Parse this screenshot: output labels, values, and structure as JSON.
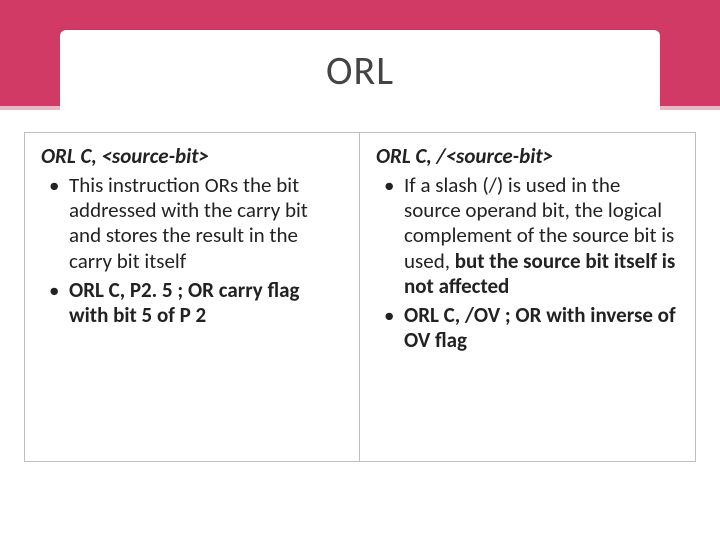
{
  "title": "ORL",
  "left": {
    "heading": "ORL C, <source-bit>",
    "items": [
      {
        "segments": [
          {
            "text": "This instruction ORs the bit addressed with the carry bit and stores the result in the carry bit itself",
            "bold": false
          }
        ]
      },
      {
        "segments": [
          {
            "text": "ORL C, P2. 5 ; OR carry flag with bit 5 of P 2",
            "bold": true
          }
        ]
      }
    ]
  },
  "right": {
    "heading": "ORL C, /<source-bit>",
    "items": [
      {
        "segments": [
          {
            "text": "If a slash (/) is used in the source operand bit, the logical complement of the source bit is used, ",
            "bold": false
          },
          {
            "text": "but the source bit itself is not affected",
            "bold": true
          }
        ]
      },
      {
        "segments": [
          {
            "text": "ORL C, /OV ; OR with inverse of OV flag",
            "bold": true
          }
        ]
      }
    ]
  },
  "colors": {
    "header_bg": "#d03a64",
    "header_border": "#e8b8c7",
    "box_border": "#bfbfbf",
    "text": "#222222",
    "bg": "#ffffff"
  }
}
